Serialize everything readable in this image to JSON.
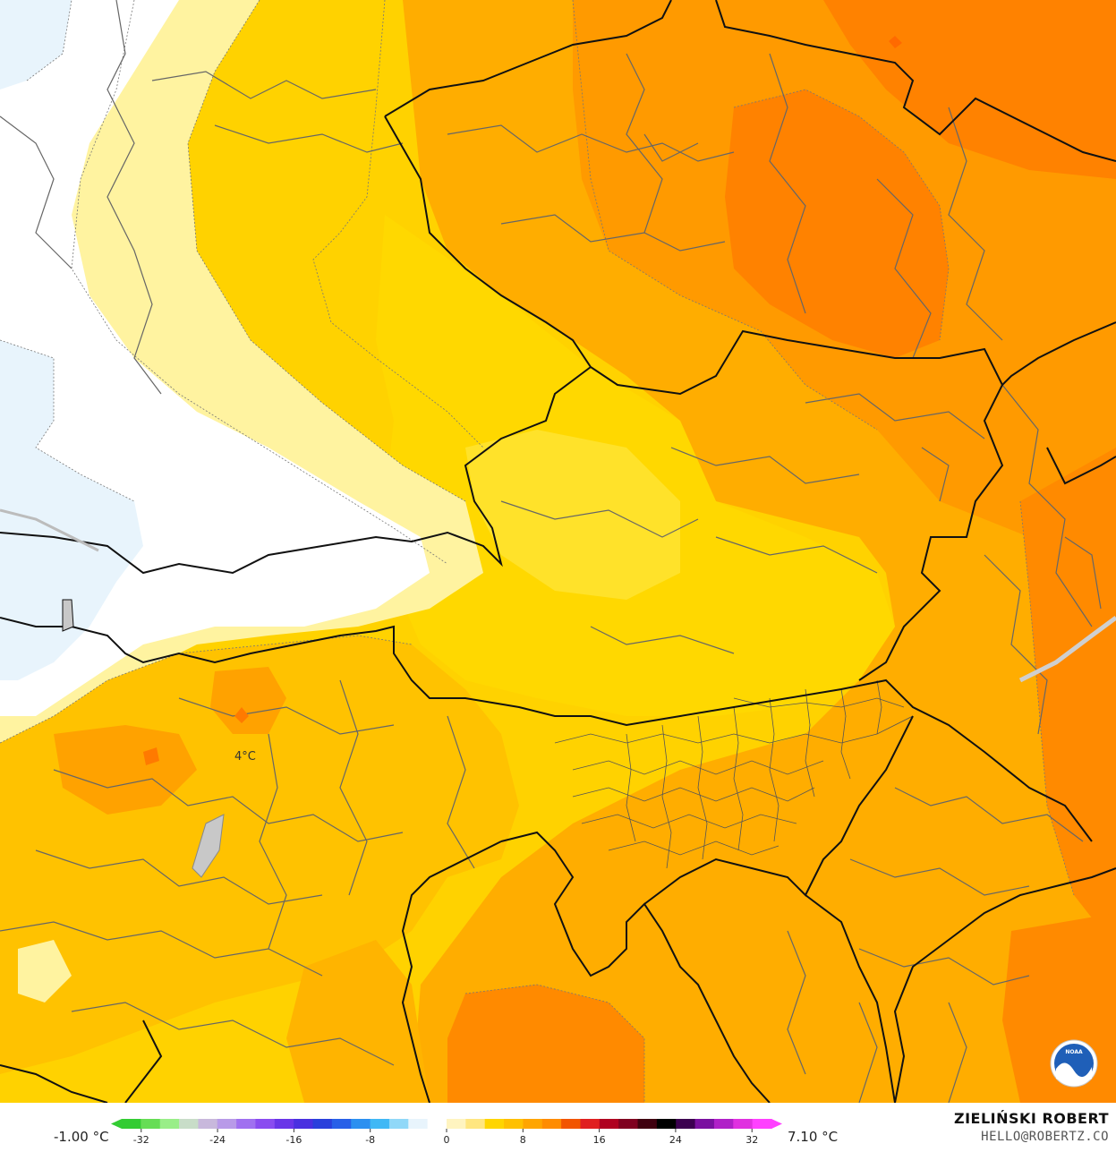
{
  "map": {
    "point_label": "4°C"
  },
  "legend": {
    "min_value_label": "-1.00 °C",
    "max_value_label": "7.10 °C",
    "ticks": [
      "-32",
      "-24",
      "-16",
      "-8",
      "0",
      "8",
      "16",
      "24",
      "32"
    ],
    "scale_colors": [
      "#33cc33",
      "#66dd55",
      "#99ee88",
      "#c8ddc8",
      "#c8b8dc",
      "#b89ae8",
      "#a070f0",
      "#8a4cf0",
      "#6a35e8",
      "#4a30e0",
      "#2a40dc",
      "#2860e8",
      "#2c90f0",
      "#40b8f5",
      "#90d8f8",
      "#e8f4fc",
      "#ffffff",
      "#fff4c0",
      "#ffe680",
      "#ffd500",
      "#ffc000",
      "#ffa500",
      "#ff8c00",
      "#f25500",
      "#e02020",
      "#b00020",
      "#800020",
      "#400010",
      "#000000",
      "#3c0050",
      "#7a10a0",
      "#b020c8",
      "#e030e0",
      "#ff40ff"
    ]
  },
  "credit": {
    "name": "ZIELIŃSKI ROBERT",
    "email": "HELLO@ROBERTZ.CO"
  },
  "logo": {
    "text": "NOAA"
  }
}
